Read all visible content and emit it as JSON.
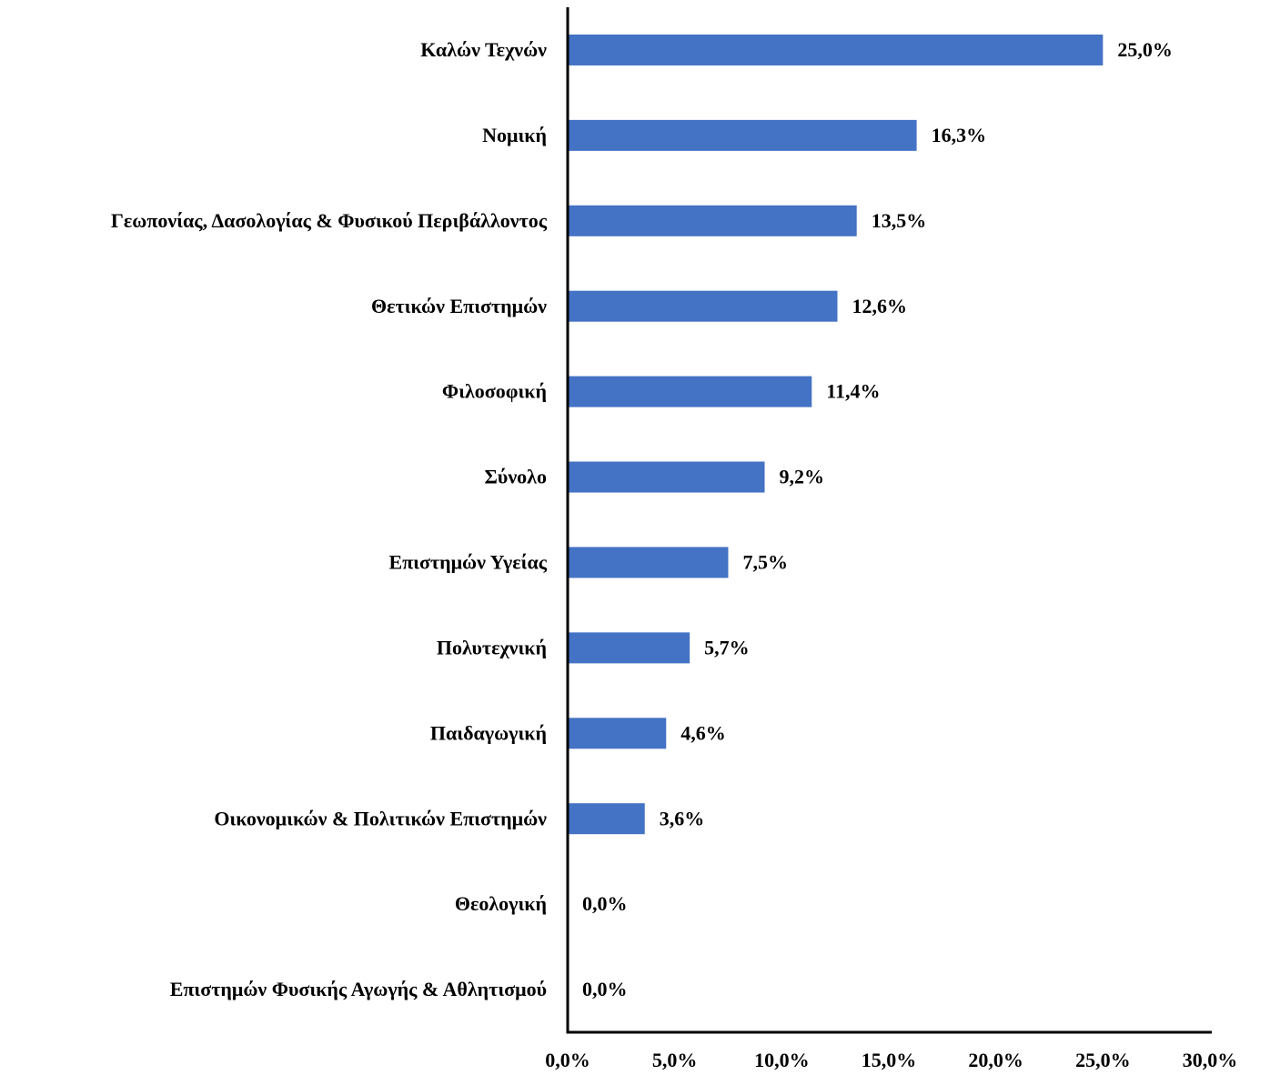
{
  "chart_data": {
    "type": "barh",
    "categories": [
      "Καλών Τεχνών",
      "Νομική",
      "Γεωπονίας, Δασολογίας & Φυσικού Περιβάλλοντος",
      "Θετικών Επιστημών",
      "Φιλοσοφική",
      "Σύνολο",
      "Επιστημών Υγείας",
      "Πολυτεχνική",
      "Παιδαγωγική",
      "Οικονομικών & Πολιτικών Επιστημών",
      "Θεολογική",
      "Επιστημών Φυσικής Αγωγής & Αθλητισμού"
    ],
    "values": [
      25.0,
      16.3,
      13.5,
      12.6,
      11.4,
      9.2,
      7.5,
      5.7,
      4.6,
      3.6,
      0.0,
      0.0
    ],
    "value_labels": [
      "25,0%",
      "16,3%",
      "13,5%",
      "12,6%",
      "11,4%",
      "9,2%",
      "7,5%",
      "5,7%",
      "4,6%",
      "3,6%",
      "0,0%",
      "0,0%"
    ],
    "value_label_colors": [
      "#000000",
      "#000000",
      "#000000",
      "#000000",
      "#000000",
      "#ff0000",
      "#000000",
      "#000000",
      "#000000",
      "#000000",
      "#000000",
      "#000000"
    ],
    "color": "#4472c4",
    "xlim": [
      0,
      30
    ],
    "xticks": [
      {
        "value": 0,
        "label": "0,0%"
      },
      {
        "value": 5,
        "label": "5,0%"
      },
      {
        "value": 10,
        "label": "10,0%"
      },
      {
        "value": 15,
        "label": "15,0%"
      },
      {
        "value": 20,
        "label": "20,0%"
      },
      {
        "value": 25,
        "label": "25,0%"
      },
      {
        "value": 30,
        "label": "30,0%"
      }
    ],
    "grid": false
  }
}
